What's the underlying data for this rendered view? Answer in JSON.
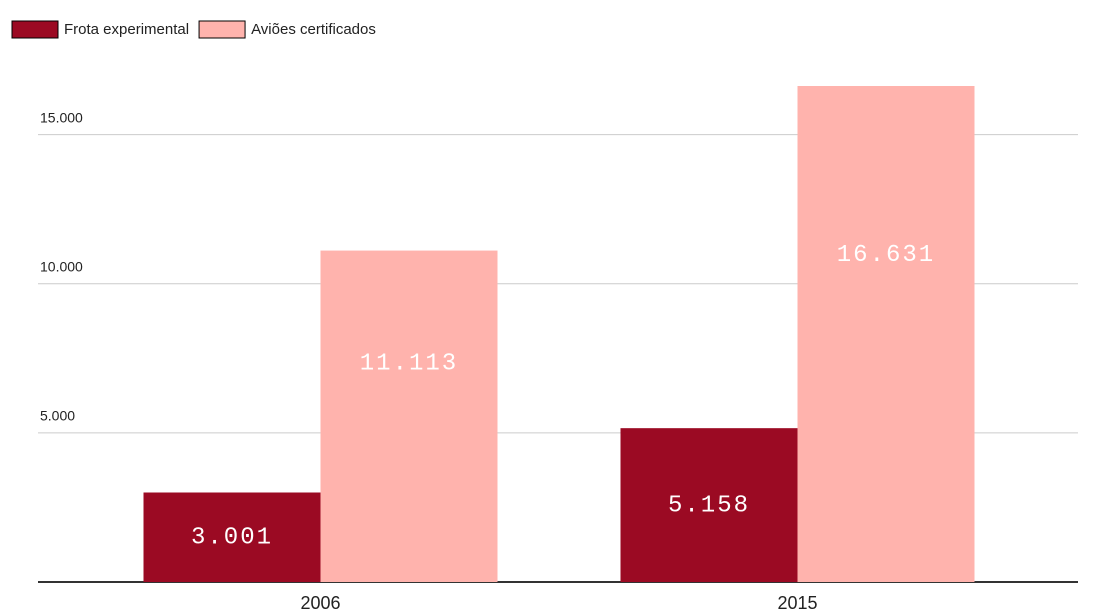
{
  "chart_data": {
    "type": "bar",
    "categories": [
      "2006",
      "2015"
    ],
    "series": [
      {
        "name": "Frota experimental",
        "color": "#9b0a23",
        "values": [
          3001,
          5158
        ],
        "value_labels": [
          "3.001",
          "5.158"
        ]
      },
      {
        "name": "Aviões certificados",
        "color": "#ffb3ad",
        "values": [
          11113,
          16631
        ],
        "value_labels": [
          "11.113",
          "16.631"
        ]
      }
    ],
    "ylim": [
      0,
      17000
    ],
    "yticks": [
      {
        "value": 5000,
        "label": "5.000"
      },
      {
        "value": 10000,
        "label": "10.000"
      },
      {
        "value": 15000,
        "label": "15.000"
      }
    ],
    "grid": true,
    "legend": "top-left"
  }
}
